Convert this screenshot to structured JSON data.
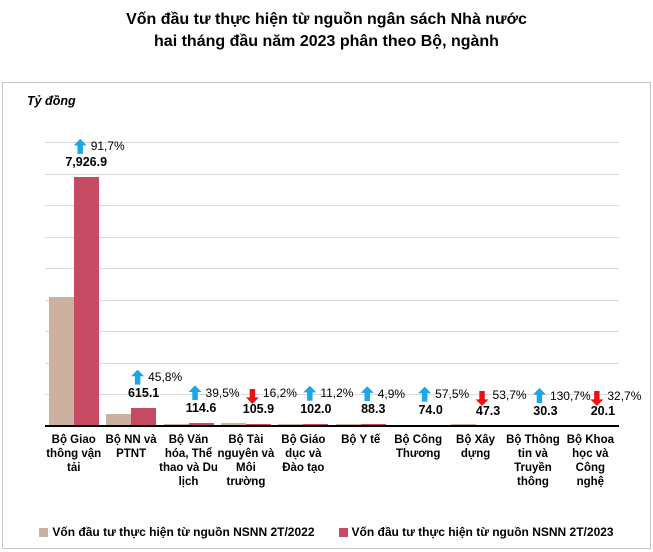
{
  "title": {
    "line1": "Vốn đầu tư thực hiện từ nguồn ngân sách Nhà nước",
    "line2": "hai tháng đầu năm 2023 phân theo Bộ, ngành"
  },
  "chart_data": {
    "type": "bar",
    "title": "Vốn đầu tư thực hiện từ nguồn ngân sách Nhà nước hai tháng đầu năm 2023 phân theo Bộ, ngành",
    "ylabel": "Tỷ đồng",
    "xlabel": "",
    "ylim": [
      0,
      9000
    ],
    "gridline_step": 1000,
    "grid": true,
    "legend_position": "bottom",
    "categories": [
      "Bộ Giao thông vận tải",
      "Bộ NN và PTNT",
      "Bộ Văn hóa, Thể thao và Du lịch",
      "Bộ Tài nguyên và Môi trường",
      "Bộ Giáo dục và Đào tạo",
      "Bộ Y tế",
      "Bộ Công Thương",
      "Bộ Xây dựng",
      "Bộ Thông tin và Truyền thông",
      "Bộ Khoa học và Công nghệ"
    ],
    "series": [
      {
        "name": "Vốn đầu tư thực hiện từ nguồn NSNN 2T/2022",
        "color": "#cdb1a0",
        "values_estimated": true,
        "values": [
          4135,
          422,
          82,
          126,
          92,
          84,
          47,
          102,
          13,
          30
        ]
      },
      {
        "name": "Vốn đầu tư thực hiện từ nguồn NSNN 2T/2023",
        "color": "#c64a63",
        "values": [
          7926.9,
          615.1,
          114.6,
          105.9,
          102.0,
          88.3,
          74.0,
          47.3,
          30.3,
          20.1
        ]
      }
    ],
    "value_labels": [
      "7,926.9",
      "615.1",
      "114.6",
      "105.9",
      "102.0",
      "88.3",
      "74.0",
      "47.3",
      "30.3",
      "20.1"
    ],
    "pct_change_labels": [
      "91,7%",
      "45,8%",
      "39,5%",
      "16,2%",
      "11,2%",
      "4,9%",
      "57,5%",
      "53,7%",
      "130,7%",
      "32,7%"
    ],
    "pct_change_directions": [
      "up",
      "up",
      "up",
      "down",
      "up",
      "up",
      "up",
      "down",
      "up",
      "down"
    ]
  },
  "legend": {
    "items": [
      {
        "label": "Vốn đầu tư thực hiện từ nguồn NSNN 2T/2022",
        "color": "#cdb1a0"
      },
      {
        "label": "Vốn đầu tư thực hiện từ nguồn NSNN 2T/2023",
        "color": "#c64a63"
      }
    ]
  },
  "colors": {
    "bar_2022": "#cdb1a0",
    "bar_2023": "#c64a63",
    "up_arrow": "#1aa7e8",
    "down_arrow": "#ee1111",
    "grid": "#d9d9d9",
    "axis": "#000000",
    "frame_border": "#c6c6c6",
    "text": "#000000"
  }
}
